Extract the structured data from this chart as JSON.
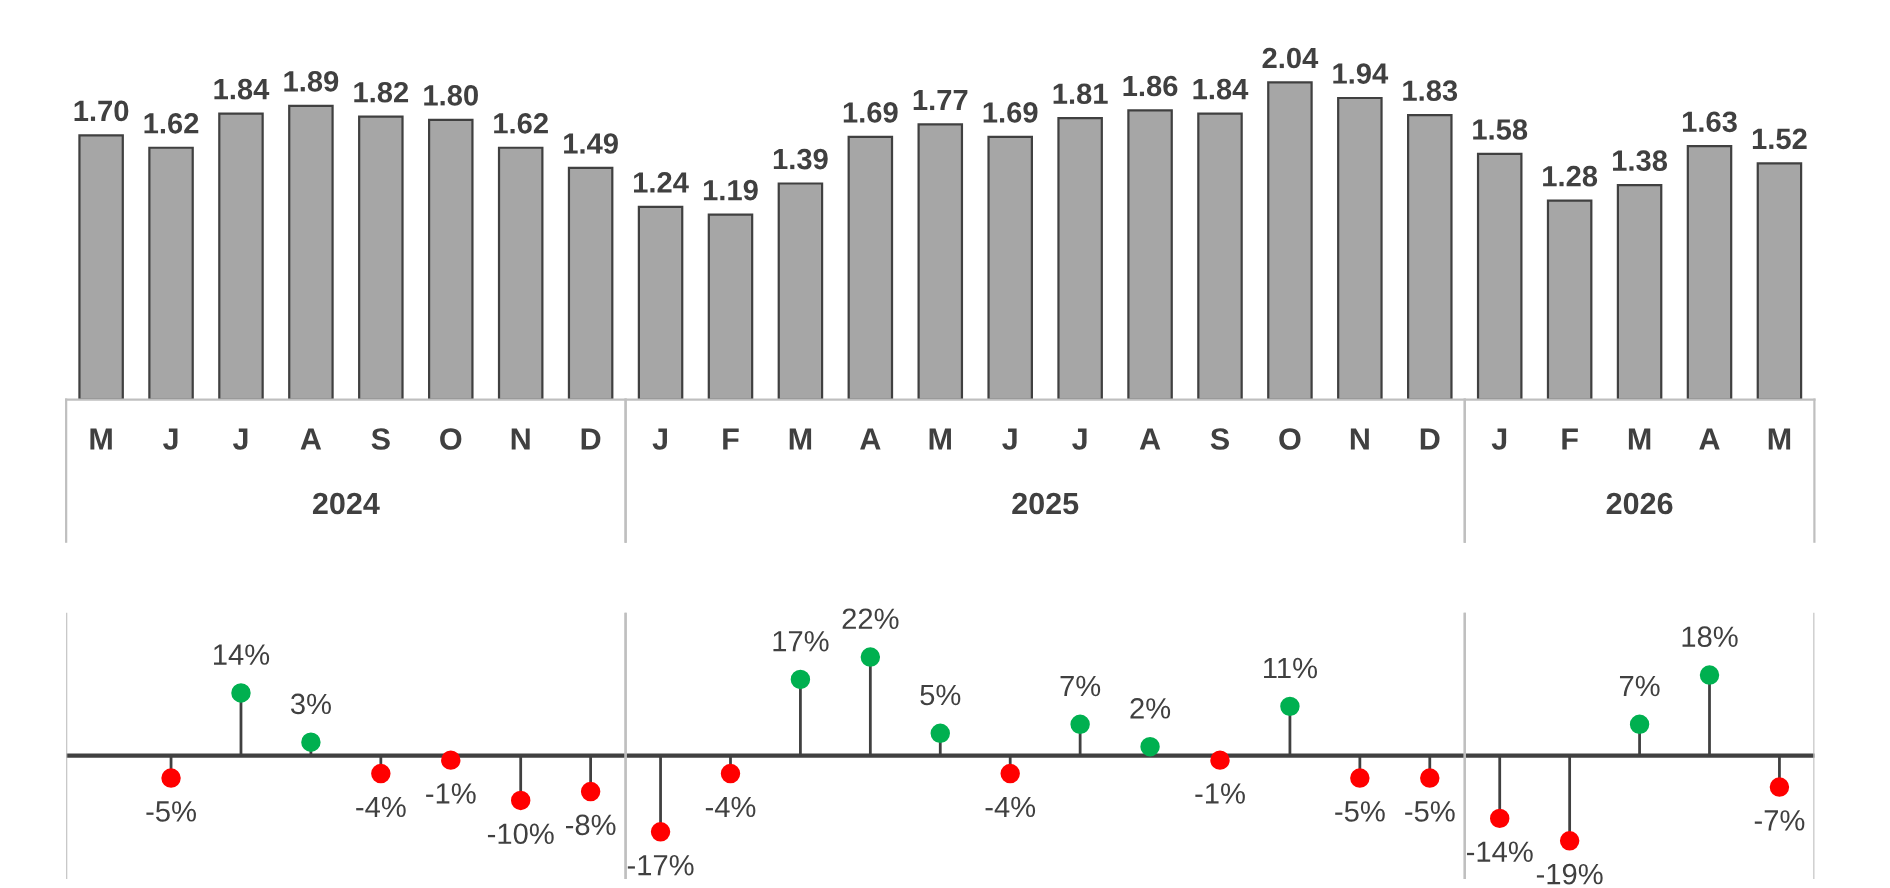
{
  "chart_data": [
    {
      "type": "bar",
      "categories": [
        "M",
        "J",
        "J",
        "A",
        "S",
        "O",
        "N",
        "D",
        "J",
        "F",
        "M",
        "A",
        "M",
        "J",
        "J",
        "A",
        "S",
        "O",
        "N",
        "D",
        "J",
        "F",
        "M",
        "A",
        "M"
      ],
      "values": [
        1.7,
        1.62,
        1.84,
        1.89,
        1.82,
        1.8,
        1.62,
        1.49,
        1.24,
        1.19,
        1.39,
        1.69,
        1.77,
        1.69,
        1.81,
        1.86,
        1.84,
        2.04,
        1.94,
        1.83,
        1.58,
        1.28,
        1.38,
        1.63,
        1.52
      ],
      "color": "#a6a6a6",
      "value_labels": [
        "1.70",
        "1.62",
        "1.84",
        "1.89",
        "1.82",
        "1.80",
        "1.62",
        "1.49",
        "1.24",
        "1.19",
        "1.39",
        "1.69",
        "1.77",
        "1.69",
        "1.81",
        "1.86",
        "1.84",
        "2.04",
        "1.94",
        "1.83",
        "1.58",
        "1.28",
        "1.38",
        "1.63",
        "1.52"
      ],
      "annotations": [
        "2024",
        "2025",
        "2026"
      ]
    },
    {
      "type": "lollipop",
      "categories": [
        null,
        null,
        null,
        null,
        null,
        null,
        null,
        null,
        null,
        null,
        null,
        null,
        null,
        null,
        null,
        null,
        null,
        null,
        null,
        null,
        null,
        null,
        null,
        null,
        null
      ],
      "values": [
        null,
        -5,
        14,
        3,
        -4,
        -1,
        -10,
        -8,
        -17,
        -4,
        17,
        22,
        5,
        -4,
        7,
        2,
        -1,
        11,
        -5,
        -5,
        -14,
        -19,
        7,
        18,
        -7
      ],
      "value_labels": [
        null,
        "-5%",
        "14%",
        "3%",
        "-4%",
        "-1%",
        "-10%",
        "-8%",
        "-17%",
        "-4%",
        "17%",
        "22%",
        "5%",
        "-4%",
        "7%",
        "2%",
        "-1%",
        "11%",
        "-5%",
        "-5%",
        "-14%",
        "-19%",
        "7%",
        "18%",
        "-7%"
      ],
      "colors": [
        null,
        "#ff0000",
        "#00b050",
        "#00b050",
        "#ff0000",
        "#ff0000",
        "#ff0000",
        "#ff0000",
        "#ff0000",
        "#ff0000",
        "#00b050",
        "#00b050",
        "#00b050",
        "#ff0000",
        "#00b050",
        "#00b050",
        "#ff0000",
        "#00b050",
        "#ff0000",
        "#ff0000",
        "#ff0000",
        "#ff0000",
        "#00b050",
        "#00b050",
        "#ff0000"
      ]
    }
  ]
}
